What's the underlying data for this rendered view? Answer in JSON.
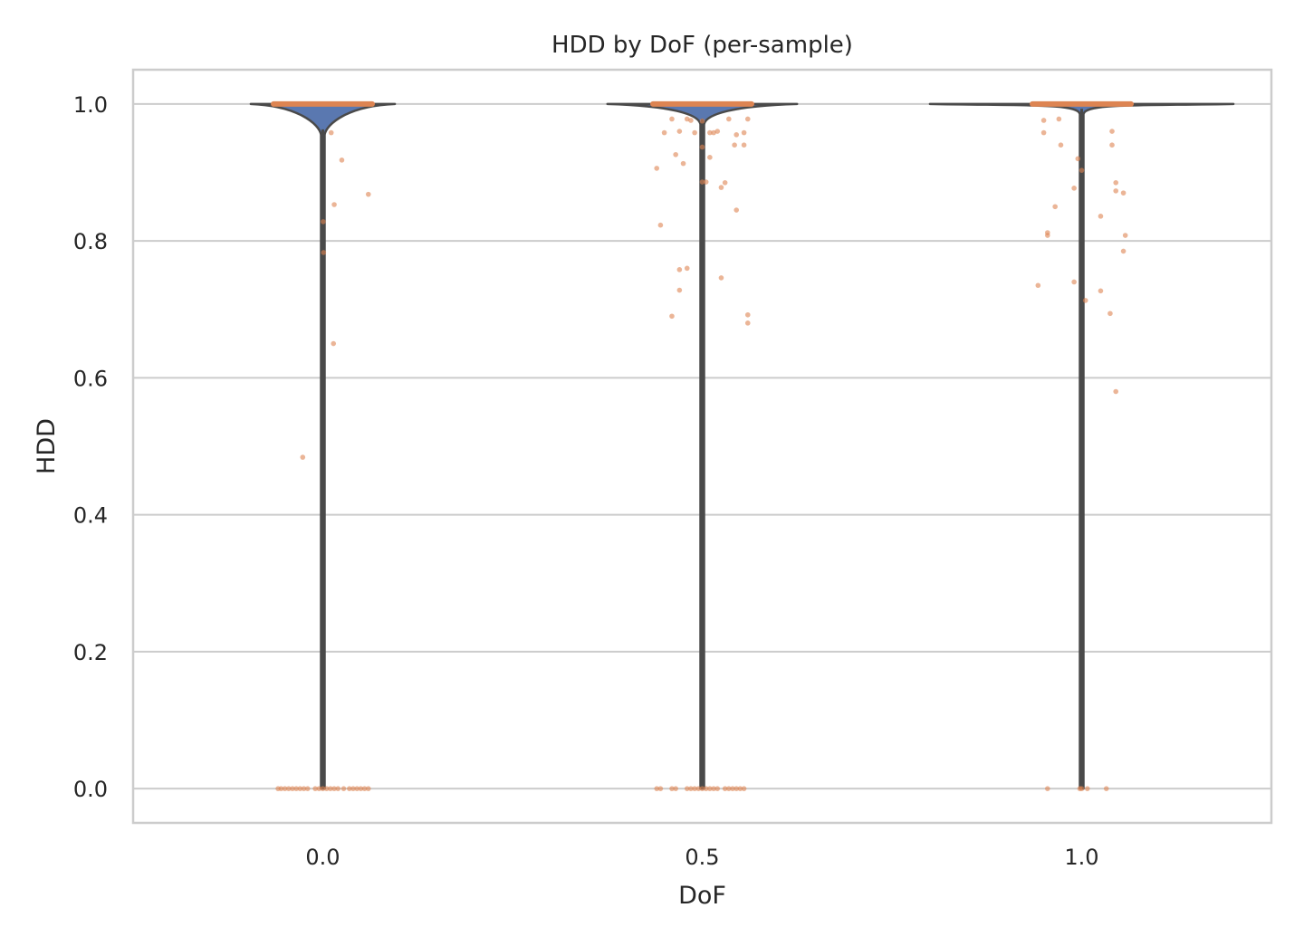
{
  "chart_data": {
    "type": "violin",
    "title": "HDD by DoF (per-sample)",
    "xlabel": "DoF",
    "ylabel": "HDD",
    "categories": [
      "0.0",
      "0.5",
      "1.0"
    ],
    "yticks": [
      "0.0",
      "0.2",
      "0.4",
      "0.6",
      "0.8",
      "1.0"
    ],
    "ytick_values": [
      0.0,
      0.2,
      0.4,
      0.6,
      0.8,
      1.0
    ],
    "ylim": [
      -0.05,
      1.05
    ],
    "grid": "horizontal",
    "colors": {
      "violin_fill": "#5a78b0",
      "violin_line": "#4a4a4a",
      "points": "#dd8452",
      "grid": "#cccccc",
      "frame": "#cccccc"
    },
    "series": [
      {
        "category": "0.0",
        "points": [
          {
            "x": 0.022,
            "y": 0.958
          },
          {
            "x": 0.03,
            "y": 0.853
          },
          {
            "x": 0.05,
            "y": 0.918
          },
          {
            "x": 0.12,
            "y": 0.868
          },
          {
            "x": 0.001,
            "y": 0.828
          },
          {
            "x": 0.002,
            "y": 0.783
          },
          {
            "x": 0.028,
            "y": 0.65
          },
          {
            "x": -0.053,
            "y": 0.484
          },
          {
            "x": -0.118,
            "y": 0.0
          },
          {
            "x": -0.11,
            "y": 0.0
          },
          {
            "x": -0.1,
            "y": 0.0
          },
          {
            "x": -0.09,
            "y": 0.0
          },
          {
            "x": -0.08,
            "y": 0.0
          },
          {
            "x": -0.07,
            "y": 0.0
          },
          {
            "x": -0.06,
            "y": 0.0
          },
          {
            "x": -0.05,
            "y": 0.0
          },
          {
            "x": -0.04,
            "y": 0.0
          },
          {
            "x": -0.02,
            "y": 0.0
          },
          {
            "x": -0.01,
            "y": 0.0
          },
          {
            "x": 0.0,
            "y": 0.0
          },
          {
            "x": 0.01,
            "y": 0.0
          },
          {
            "x": 0.02,
            "y": 0.0
          },
          {
            "x": 0.03,
            "y": 0.0
          },
          {
            "x": 0.04,
            "y": 0.0
          },
          {
            "x": 0.055,
            "y": 0.0
          },
          {
            "x": 0.07,
            "y": 0.0
          },
          {
            "x": 0.08,
            "y": 0.0
          },
          {
            "x": 0.09,
            "y": 0.0
          },
          {
            "x": 0.1,
            "y": 0.0
          },
          {
            "x": 0.11,
            "y": 0.0
          },
          {
            "x": 0.12,
            "y": 0.0
          }
        ]
      },
      {
        "category": "0.5",
        "points": [
          {
            "x": -0.1,
            "y": 0.958
          },
          {
            "x": -0.08,
            "y": 0.978
          },
          {
            "x": -0.06,
            "y": 0.96
          },
          {
            "x": -0.04,
            "y": 0.978
          },
          {
            "x": -0.03,
            "y": 0.976
          },
          {
            "x": -0.02,
            "y": 0.958
          },
          {
            "x": 0.0,
            "y": 0.975
          },
          {
            "x": 0.02,
            "y": 0.958
          },
          {
            "x": 0.03,
            "y": 0.958
          },
          {
            "x": 0.04,
            "y": 0.96
          },
          {
            "x": 0.07,
            "y": 0.978
          },
          {
            "x": 0.11,
            "y": 0.958
          },
          {
            "x": 0.12,
            "y": 0.978
          },
          {
            "x": 0.09,
            "y": 0.955
          },
          {
            "x": 0.11,
            "y": 0.94
          },
          {
            "x": 0.085,
            "y": 0.94
          },
          {
            "x": 0.0,
            "y": 0.937
          },
          {
            "x": 0.02,
            "y": 0.922
          },
          {
            "x": -0.07,
            "y": 0.926
          },
          {
            "x": -0.05,
            "y": 0.913
          },
          {
            "x": -0.12,
            "y": 0.906
          },
          {
            "x": 0.0,
            "y": 0.886
          },
          {
            "x": 0.01,
            "y": 0.886
          },
          {
            "x": 0.06,
            "y": 0.885
          },
          {
            "x": 0.05,
            "y": 0.878
          },
          {
            "x": 0.09,
            "y": 0.845
          },
          {
            "x": -0.11,
            "y": 0.823
          },
          {
            "x": -0.06,
            "y": 0.758
          },
          {
            "x": -0.04,
            "y": 0.76
          },
          {
            "x": 0.05,
            "y": 0.746
          },
          {
            "x": -0.06,
            "y": 0.728
          },
          {
            "x": -0.08,
            "y": 0.69
          },
          {
            "x": 0.12,
            "y": 0.692
          },
          {
            "x": 0.12,
            "y": 0.68
          },
          {
            "x": -0.12,
            "y": 0.0
          },
          {
            "x": -0.11,
            "y": 0.0
          },
          {
            "x": -0.08,
            "y": 0.0
          },
          {
            "x": -0.07,
            "y": 0.0
          },
          {
            "x": -0.04,
            "y": 0.0
          },
          {
            "x": -0.03,
            "y": 0.0
          },
          {
            "x": -0.02,
            "y": 0.0
          },
          {
            "x": -0.01,
            "y": 0.0
          },
          {
            "x": 0.0,
            "y": 0.0
          },
          {
            "x": 0.01,
            "y": 0.0
          },
          {
            "x": 0.02,
            "y": 0.0
          },
          {
            "x": 0.03,
            "y": 0.0
          },
          {
            "x": 0.04,
            "y": 0.0
          },
          {
            "x": 0.06,
            "y": 0.0
          },
          {
            "x": 0.07,
            "y": 0.0
          },
          {
            "x": 0.08,
            "y": 0.0
          },
          {
            "x": 0.09,
            "y": 0.0
          },
          {
            "x": 0.1,
            "y": 0.0
          },
          {
            "x": 0.11,
            "y": 0.0
          }
        ]
      },
      {
        "category": "1.0",
        "points": [
          {
            "x": -0.1,
            "y": 0.976
          },
          {
            "x": -0.06,
            "y": 0.978
          },
          {
            "x": -0.1,
            "y": 0.958
          },
          {
            "x": -0.055,
            "y": 0.94
          },
          {
            "x": -0.01,
            "y": 0.92
          },
          {
            "x": 0.0,
            "y": 0.903
          },
          {
            "x": -0.02,
            "y": 0.877
          },
          {
            "x": -0.07,
            "y": 0.85
          },
          {
            "x": -0.09,
            "y": 0.812
          },
          {
            "x": -0.09,
            "y": 0.808
          },
          {
            "x": -0.02,
            "y": 0.74
          },
          {
            "x": -0.115,
            "y": 0.735
          },
          {
            "x": 0.01,
            "y": 0.713
          },
          {
            "x": 0.05,
            "y": 0.836
          },
          {
            "x": 0.05,
            "y": 0.727
          },
          {
            "x": 0.08,
            "y": 0.96
          },
          {
            "x": 0.08,
            "y": 0.94
          },
          {
            "x": 0.09,
            "y": 0.885
          },
          {
            "x": 0.09,
            "y": 0.873
          },
          {
            "x": 0.11,
            "y": 0.87
          },
          {
            "x": 0.115,
            "y": 0.808
          },
          {
            "x": 0.11,
            "y": 0.785
          },
          {
            "x": 0.075,
            "y": 0.694
          },
          {
            "x": 0.09,
            "y": 0.58
          },
          {
            "x": -0.09,
            "y": 0.0
          },
          {
            "x": -0.005,
            "y": 0.0
          },
          {
            "x": 0.0,
            "y": 0.0
          },
          {
            "x": 0.015,
            "y": 0.0
          },
          {
            "x": 0.065,
            "y": 0.0
          }
        ]
      }
    ]
  }
}
